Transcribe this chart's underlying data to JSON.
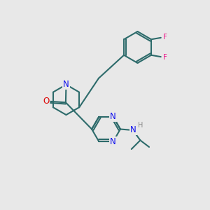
{
  "background_color": "#e8e8e8",
  "bond_color": "#2d6b6b",
  "N_color": "#1010ee",
  "O_color": "#dd0000",
  "F_color": "#ee1188",
  "H_color": "#888888",
  "line_width": 1.5,
  "figsize": [
    3.0,
    3.0
  ],
  "dpi": 100,
  "xlim": [
    0,
    10
  ],
  "ylim": [
    0,
    10
  ]
}
